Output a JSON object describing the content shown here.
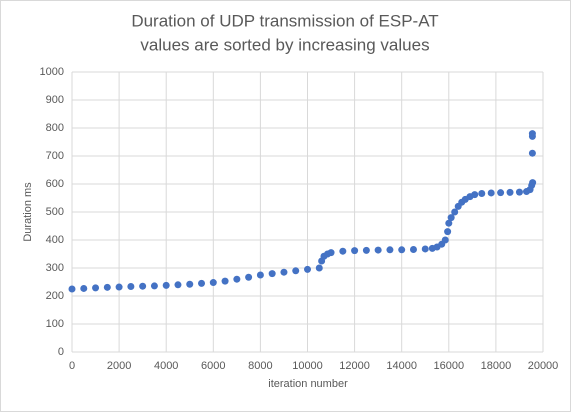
{
  "chart_data": {
    "type": "scatter",
    "title": "Duration of UDP transmission of ESP-AT",
    "subtitle": "values are sorted by increasing values",
    "x_label": "iteration number",
    "y_label": "Duration ms",
    "color": "#4472c4",
    "x": [
      0,
      500,
      1000,
      1500,
      2000,
      2500,
      3000,
      3500,
      4000,
      4500,
      5000,
      5500,
      6000,
      6500,
      7000,
      7500,
      8000,
      8500,
      9000,
      9500,
      10000,
      10500,
      10600,
      10700,
      10850,
      11000,
      11500,
      12000,
      12500,
      13000,
      13500,
      14000,
      14500,
      15000,
      15300,
      15500,
      15700,
      15850,
      15950,
      16000,
      16100,
      16250,
      16400,
      16550,
      16700,
      16900,
      17100,
      17400,
      17800,
      18200,
      18600,
      19000,
      19300,
      19450,
      19520,
      19560,
      19550,
      19550,
      19550
    ],
    "values": [
      225,
      227,
      229,
      231,
      232,
      234,
      235,
      236,
      238,
      240,
      242,
      245,
      248,
      253,
      260,
      267,
      275,
      280,
      285,
      290,
      295,
      300,
      325,
      342,
      350,
      355,
      360,
      362,
      363,
      364,
      365,
      365,
      366,
      368,
      370,
      375,
      385,
      400,
      430,
      460,
      480,
      500,
      520,
      535,
      545,
      555,
      562,
      566,
      568,
      569,
      570,
      571,
      573,
      580,
      595,
      605,
      710,
      770,
      780
    ],
    "xlim": [
      0,
      20000
    ],
    "xticks": [
      0,
      2000,
      4000,
      6000,
      8000,
      10000,
      12000,
      14000,
      16000,
      18000,
      20000
    ],
    "ylim": [
      0,
      1000
    ],
    "yticks": [
      0,
      100,
      200,
      300,
      400,
      500,
      600,
      700,
      800,
      900,
      1000
    ],
    "grid": true
  }
}
